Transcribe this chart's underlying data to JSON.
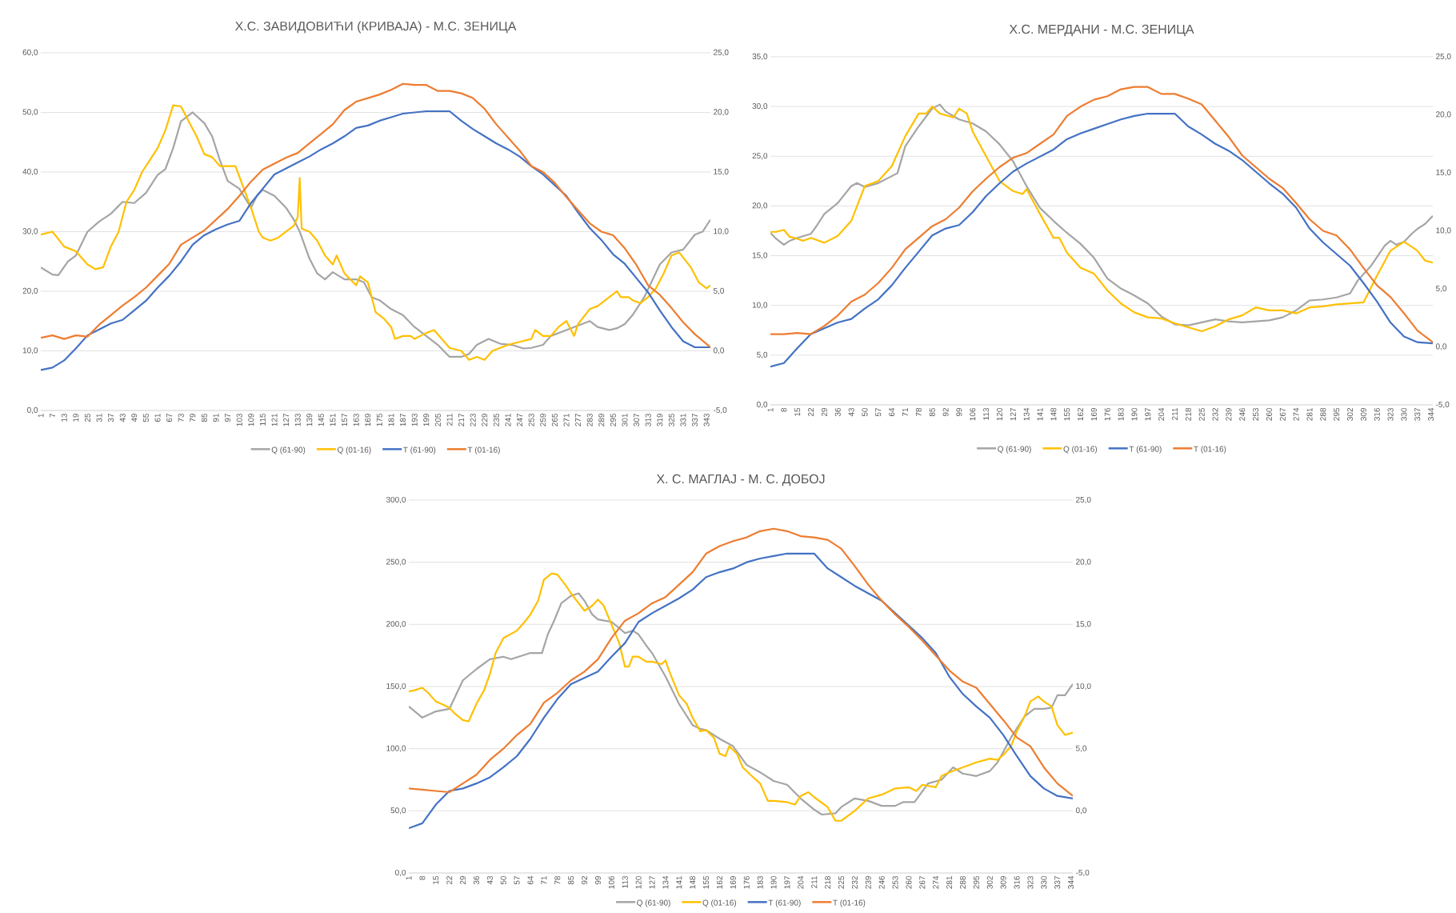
{
  "chart_data": [
    {
      "type": "line",
      "title": "Х.С. ЗАВИДОВИЋИ (КРИВАЈА) - М.С. ЗЕНИЦА",
      "grid": "y",
      "legend": "bottom",
      "xlim": [
        1,
        345
      ],
      "xticks": [
        1,
        7,
        13,
        19,
        25,
        31,
        37,
        43,
        49,
        55,
        61,
        67,
        73,
        79,
        85,
        91,
        97,
        103,
        109,
        115,
        121,
        127,
        133,
        139,
        145,
        151,
        157,
        163,
        169,
        175,
        181,
        187,
        193,
        199,
        205,
        211,
        217,
        223,
        229,
        235,
        241,
        247,
        253,
        259,
        265,
        271,
        277,
        283,
        289,
        295,
        301,
        307,
        313,
        319,
        325,
        331,
        337,
        343
      ],
      "ylim": [
        0,
        60
      ],
      "yticks": [
        {
          "value": 0,
          "label": "0,0"
        },
        {
          "value": 10,
          "label": "10,0"
        },
        {
          "value": 20,
          "label": "20,0"
        },
        {
          "value": 30,
          "label": "30,0"
        },
        {
          "value": 40,
          "label": "40,0"
        },
        {
          "value": 50,
          "label": "50,0"
        },
        {
          "value": 60,
          "label": "60,0"
        }
      ],
      "y2lim": [
        -5,
        25
      ],
      "y2ticks": [
        {
          "value": -5,
          "label": "-5,0"
        },
        {
          "value": 0,
          "label": "0,0"
        },
        {
          "value": 5,
          "label": "5,0"
        },
        {
          "value": 10,
          "label": "10,0"
        },
        {
          "value": 15,
          "label": "15,0"
        },
        {
          "value": 20,
          "label": "20,0"
        },
        {
          "value": 25,
          "label": "25,0"
        }
      ],
      "series": [
        {
          "name": "Q (61-90)",
          "color": "#a5a5a5",
          "axis": "y",
          "x": [
            1,
            7,
            10,
            15,
            19,
            25,
            31,
            37,
            43,
            49,
            55,
            61,
            65,
            69,
            73,
            79,
            85,
            89,
            93,
            97,
            103,
            109,
            112,
            115,
            121,
            127,
            131,
            134,
            139,
            143,
            147,
            151,
            157,
            163,
            167,
            171,
            175,
            181,
            187,
            193,
            199,
            205,
            211,
            217,
            221,
            225,
            231,
            237,
            243,
            249,
            253,
            259,
            263,
            271,
            279,
            283,
            287,
            293,
            297,
            301,
            305,
            311,
            319,
            325,
            331,
            337,
            341,
            345
          ],
          "values": [
            24,
            22.8,
            22.7,
            25,
            26,
            30,
            31.7,
            33,
            35,
            34.8,
            36.5,
            39.5,
            40.5,
            44,
            48.5,
            50,
            48.2,
            46,
            42,
            38.5,
            37.2,
            34,
            36,
            37,
            36,
            34,
            32,
            30,
            25.5,
            23,
            22,
            23.2,
            22,
            22,
            21.5,
            19,
            18.5,
            17,
            16,
            14,
            12.5,
            11,
            9,
            9,
            9.5,
            11,
            12,
            11.2,
            11,
            10.4,
            10.5,
            11,
            12.5,
            13.5,
            14.5,
            15,
            14,
            13.5,
            13.8,
            14.5,
            16,
            19,
            24.5,
            26.5,
            27,
            29.5,
            30,
            32
          ]
        },
        {
          "name": "Q (01-16)",
          "color": "#ffc000",
          "axis": "y",
          "x": [
            1,
            7,
            13,
            19,
            25,
            29,
            33,
            37,
            41,
            45,
            49,
            53,
            57,
            61,
            65,
            69,
            73,
            77,
            81,
            85,
            89,
            93,
            97,
            101,
            105,
            109,
            113,
            115,
            119,
            123,
            127,
            131,
            133,
            134,
            135,
            139,
            143,
            147,
            151,
            153,
            157,
            163,
            165,
            169,
            173,
            177,
            181,
            183,
            187,
            191,
            193,
            199,
            203,
            207,
            211,
            217,
            221,
            225,
            229,
            233,
            237,
            241,
            247,
            253,
            255,
            259,
            263,
            267,
            271,
            275,
            277,
            283,
            287,
            289,
            293,
            297,
            299,
            303,
            305,
            309,
            313,
            317,
            321,
            325,
            329,
            335,
            339,
            343,
            345
          ],
          "values": [
            29.5,
            30,
            27.5,
            26.7,
            24.5,
            23.7,
            24,
            27.5,
            30,
            35,
            37,
            40,
            42,
            44,
            47,
            51.2,
            51,
            48.5,
            46,
            43,
            42.5,
            41,
            41,
            41,
            37.5,
            34,
            30,
            29,
            28.5,
            29,
            30,
            31,
            32.5,
            39,
            30.5,
            30,
            28.5,
            26,
            24.5,
            26,
            23,
            21,
            22.5,
            21.5,
            16.5,
            15.5,
            14,
            12,
            12.5,
            12.5,
            12,
            13,
            13.5,
            12,
            10.5,
            10,
            8.5,
            9,
            8.5,
            10,
            10.5,
            11,
            11.5,
            12,
            13.5,
            12.5,
            12.5,
            14,
            15,
            12.5,
            14.5,
            17,
            17.5,
            18,
            19,
            20,
            19,
            19,
            18.5,
            18,
            19,
            20.5,
            23,
            26,
            26.5,
            24,
            21.5,
            20.5,
            21
          ]
        },
        {
          "name": "T (61-90)",
          "color": "#4472c4",
          "axis": "y2",
          "x": [
            1,
            7,
            13,
            19,
            25,
            31,
            37,
            43,
            49,
            55,
            61,
            67,
            73,
            79,
            85,
            91,
            97,
            103,
            109,
            115,
            121,
            127,
            133,
            139,
            145,
            151,
            157,
            163,
            169,
            175,
            181,
            187,
            193,
            199,
            205,
            211,
            217,
            223,
            229,
            235,
            241,
            247,
            253,
            259,
            265,
            271,
            277,
            283,
            289,
            295,
            301,
            307,
            313,
            319,
            325,
            331,
            337,
            345
          ],
          "values": [
            -1.6,
            -1.4,
            -0.8,
            0.2,
            1.3,
            1.8,
            2.3,
            2.6,
            3.4,
            4.2,
            5.3,
            6.3,
            7.5,
            8.9,
            9.7,
            10.2,
            10.6,
            10.9,
            12.4,
            13.6,
            14.8,
            15.3,
            15.8,
            16.3,
            16.9,
            17.4,
            18,
            18.7,
            18.9,
            19.3,
            19.6,
            19.9,
            20,
            20.1,
            20.1,
            20.1,
            19.3,
            18.6,
            18,
            17.4,
            16.9,
            16.3,
            15.5,
            14.8,
            13.9,
            13,
            11.6,
            10.3,
            9.3,
            8.1,
            7.3,
            6.1,
            4.9,
            3.4,
            2,
            0.8,
            0.3,
            0.3
          ]
        },
        {
          "name": "T (01-16)",
          "color": "#ed7d31",
          "axis": "y2",
          "x": [
            1,
            7,
            13,
            19,
            25,
            31,
            37,
            43,
            49,
            55,
            61,
            67,
            73,
            79,
            85,
            91,
            97,
            103,
            109,
            115,
            121,
            127,
            133,
            139,
            145,
            151,
            157,
            163,
            169,
            175,
            181,
            187,
            193,
            199,
            205,
            211,
            217,
            223,
            229,
            235,
            241,
            247,
            253,
            259,
            265,
            271,
            277,
            283,
            289,
            295,
            301,
            307,
            313,
            319,
            325,
            331,
            337,
            345
          ],
          "values": [
            1.1,
            1.3,
            1,
            1.3,
            1.2,
            2.2,
            3,
            3.8,
            4.5,
            5.3,
            6.3,
            7.3,
            8.9,
            9.5,
            10.1,
            11,
            11.9,
            13,
            14.2,
            15.2,
            15.7,
            16.2,
            16.6,
            17.4,
            18.2,
            19,
            20.2,
            20.9,
            21.2,
            21.5,
            21.9,
            22.4,
            22.3,
            22.3,
            21.8,
            21.8,
            21.6,
            21.2,
            20.3,
            19,
            17.9,
            16.8,
            15.5,
            15,
            14.1,
            12.9,
            11.8,
            10.7,
            10,
            9.7,
            8.6,
            7.2,
            5.5,
            4.7,
            3.6,
            2.4,
            1.4,
            0.3
          ]
        }
      ]
    },
    {
      "type": "line",
      "title": "Х.С. МЕРДАНИ - М.С. ЗЕНИЦА",
      "grid": "y",
      "legend": "bottom",
      "xlim": [
        1,
        345
      ],
      "xticks": [
        1,
        8,
        15,
        22,
        29,
        36,
        43,
        50,
        57,
        64,
        71,
        78,
        85,
        92,
        99,
        106,
        113,
        120,
        127,
        134,
        141,
        148,
        155,
        162,
        169,
        176,
        183,
        190,
        197,
        204,
        211,
        218,
        225,
        232,
        239,
        246,
        253,
        260,
        267,
        274,
        281,
        288,
        295,
        302,
        309,
        316,
        323,
        330,
        337,
        344
      ],
      "ylim": [
        0,
        35
      ],
      "yticks": [
        {
          "value": 0,
          "label": "0,0"
        },
        {
          "value": 5,
          "label": "5,0"
        },
        {
          "value": 10,
          "label": "10,0"
        },
        {
          "value": 15,
          "label": "15,0"
        },
        {
          "value": 20,
          "label": "20,0"
        },
        {
          "value": 25,
          "label": "25,0"
        },
        {
          "value": 30,
          "label": "30,0"
        },
        {
          "value": 35,
          "label": "35,0"
        }
      ],
      "y2lim": [
        -5,
        25
      ],
      "y2ticks": [
        {
          "value": -5,
          "label": "-5,0"
        },
        {
          "value": 0,
          "label": "0,0"
        },
        {
          "value": 5,
          "label": "5,0"
        },
        {
          "value": 10,
          "label": "10,0"
        },
        {
          "value": 15,
          "label": "15,0"
        },
        {
          "value": 20,
          "label": "20,0"
        },
        {
          "value": 25,
          "label": "25,0"
        }
      ],
      "series": [
        {
          "name": "Q (61-90)",
          "color": "#a5a5a5",
          "axis": "y",
          "x": [
            1,
            4,
            8,
            11,
            15,
            22,
            25,
            29,
            36,
            43,
            46,
            50,
            57,
            64,
            67,
            71,
            78,
            85,
            89,
            92,
            99,
            106,
            113,
            120,
            127,
            134,
            141,
            148,
            155,
            162,
            169,
            176,
            183,
            190,
            197,
            204,
            211,
            218,
            225,
            232,
            239,
            246,
            253,
            260,
            267,
            274,
            281,
            288,
            295,
            302,
            306,
            313,
            320,
            323,
            326,
            330,
            334,
            337,
            341,
            345
          ],
          "values": [
            17.3,
            16.7,
            16.1,
            16.5,
            16.8,
            17.2,
            18,
            19.2,
            20.3,
            22,
            22.3,
            21.9,
            22.3,
            23,
            23.3,
            26,
            28,
            29.8,
            30.2,
            29.5,
            28.7,
            28.3,
            27.5,
            26.2,
            24.5,
            22,
            19.8,
            18.5,
            17.3,
            16.2,
            14.8,
            12.7,
            11.7,
            11,
            10.2,
            8.9,
            8.1,
            8,
            8.3,
            8.6,
            8.4,
            8.3,
            8.4,
            8.5,
            8.8,
            9.5,
            10.5,
            10.6,
            10.8,
            11.2,
            12.5,
            14,
            16,
            16.5,
            16.1,
            16.4,
            17.2,
            17.7,
            18.2,
            19
          ]
        },
        {
          "name": "Q (01-16)",
          "color": "#ffc000",
          "axis": "y",
          "x": [
            1,
            4,
            8,
            11,
            15,
            18,
            22,
            29,
            36,
            43,
            50,
            57,
            64,
            71,
            78,
            82,
            85,
            89,
            96,
            99,
            103,
            106,
            113,
            120,
            127,
            132,
            134,
            141,
            148,
            151,
            155,
            162,
            169,
            176,
            183,
            190,
            197,
            204,
            211,
            218,
            225,
            232,
            239,
            246,
            253,
            260,
            267,
            274,
            281,
            288,
            295,
            302,
            309,
            316,
            323,
            330,
            334,
            337,
            341,
            345
          ],
          "values": [
            17.4,
            17.4,
            17.6,
            16.9,
            16.7,
            16.5,
            16.8,
            16.3,
            17,
            18.5,
            22,
            22.5,
            24,
            27,
            29.3,
            29.3,
            30,
            29.3,
            28.9,
            29.8,
            29.3,
            27.5,
            25,
            22.5,
            21.5,
            21.2,
            21.7,
            19.2,
            16.8,
            16.8,
            15.3,
            13.8,
            13.2,
            11.5,
            10.2,
            9.3,
            8.8,
            8.7,
            8.2,
            7.8,
            7.4,
            7.9,
            8.6,
            9,
            9.8,
            9.5,
            9.5,
            9.2,
            9.8,
            9.9,
            10.1,
            10.2,
            10.3,
            13,
            15.5,
            16.4,
            15.9,
            15.5,
            14.5,
            14.3
          ]
        },
        {
          "name": "T (61-90)",
          "color": "#4472c4",
          "axis": "y2",
          "x": [
            1,
            8,
            15,
            22,
            29,
            36,
            43,
            50,
            57,
            64,
            71,
            78,
            85,
            92,
            99,
            106,
            113,
            120,
            127,
            134,
            141,
            148,
            155,
            162,
            169,
            176,
            183,
            190,
            197,
            204,
            211,
            218,
            225,
            232,
            239,
            246,
            253,
            260,
            267,
            274,
            281,
            288,
            295,
            302,
            309,
            316,
            323,
            330,
            337,
            345
          ],
          "values": [
            -1.7,
            -1.4,
            -0.1,
            1.1,
            1.6,
            2.1,
            2.4,
            3.3,
            4.1,
            5.3,
            6.8,
            8.2,
            9.6,
            10.2,
            10.5,
            11.6,
            13,
            14.1,
            15.1,
            15.8,
            16.4,
            17,
            17.9,
            18.4,
            18.8,
            19.2,
            19.6,
            19.9,
            20.1,
            20.1,
            20.1,
            19,
            18.3,
            17.5,
            16.9,
            16.1,
            15.1,
            14.1,
            13.2,
            12,
            10.2,
            9,
            8,
            7,
            5.5,
            3.9,
            2.1,
            0.9,
            0.4,
            0.3
          ]
        },
        {
          "name": "T (01-16)",
          "color": "#ed7d31",
          "axis": "y2",
          "x": [
            1,
            8,
            15,
            22,
            29,
            36,
            43,
            50,
            57,
            64,
            71,
            78,
            85,
            92,
            99,
            106,
            113,
            120,
            127,
            134,
            141,
            148,
            155,
            162,
            169,
            176,
            183,
            190,
            197,
            204,
            211,
            218,
            225,
            232,
            239,
            246,
            253,
            260,
            267,
            274,
            281,
            288,
            295,
            302,
            309,
            316,
            323,
            330,
            337,
            345
          ],
          "values": [
            1.1,
            1.1,
            1.2,
            1.1,
            1.8,
            2.7,
            3.9,
            4.5,
            5.5,
            6.8,
            8.4,
            9.4,
            10.4,
            11,
            12,
            13.4,
            14.5,
            15.5,
            16.3,
            16.7,
            17.5,
            18.3,
            19.9,
            20.7,
            21.3,
            21.6,
            22.2,
            22.4,
            22.4,
            21.8,
            21.8,
            21.4,
            20.9,
            19.5,
            18.1,
            16.5,
            15.5,
            14.5,
            13.7,
            12.4,
            11,
            10,
            9.6,
            8.4,
            6.8,
            5.3,
            4.3,
            2.9,
            1.4,
            0.4
          ]
        }
      ]
    },
    {
      "type": "line",
      "title": "Х. С. МАГЛАЈ - М. С. ДОБОЈ",
      "grid": "y",
      "legend": "bottom",
      "xlim": [
        1,
        345
      ],
      "xticks": [
        1,
        8,
        15,
        22,
        29,
        36,
        43,
        50,
        57,
        64,
        71,
        78,
        85,
        92,
        99,
        106,
        113,
        120,
        127,
        134,
        141,
        148,
        155,
        162,
        169,
        176,
        183,
        190,
        197,
        204,
        211,
        218,
        225,
        232,
        239,
        246,
        253,
        260,
        267,
        274,
        281,
        288,
        295,
        302,
        309,
        316,
        323,
        330,
        337,
        344
      ],
      "ylim": [
        0,
        300
      ],
      "yticks": [
        {
          "value": 0,
          "label": "0,0"
        },
        {
          "value": 50,
          "label": "50,0"
        },
        {
          "value": 100,
          "label": "100,0"
        },
        {
          "value": 150,
          "label": "150,0"
        },
        {
          "value": 200,
          "label": "200,0"
        },
        {
          "value": 250,
          "label": "250,0"
        },
        {
          "value": 300,
          "label": "300,0"
        }
      ],
      "y2lim": [
        -5,
        25
      ],
      "y2ticks": [
        {
          "value": -5,
          "label": "-5,0"
        },
        {
          "value": 0,
          "label": "0,0"
        },
        {
          "value": 5,
          "label": "5,0"
        },
        {
          "value": 10,
          "label": "10,0"
        },
        {
          "value": 15,
          "label": "15,0"
        },
        {
          "value": 20,
          "label": "20,0"
        },
        {
          "value": 25,
          "label": "25,0"
        }
      ],
      "series": [
        {
          "name": "Q (61-90)",
          "color": "#a5a5a5",
          "axis": "y",
          "x": [
            1,
            8,
            15,
            22,
            29,
            36,
            43,
            50,
            54,
            64,
            70,
            73,
            76,
            80,
            85,
            89,
            92,
            96,
            99,
            106,
            110,
            113,
            117,
            120,
            124,
            127,
            134,
            141,
            148,
            152,
            155,
            162,
            169,
            176,
            183,
            190,
            197,
            204,
            211,
            215,
            222,
            225,
            232,
            239,
            246,
            253,
            257,
            263,
            270,
            277,
            283,
            288,
            295,
            302,
            306,
            313,
            320,
            325,
            330,
            334,
            337,
            341,
            345
          ],
          "values": [
            134,
            125,
            130,
            132,
            155,
            164,
            172,
            174,
            172,
            177,
            177,
            192,
            202,
            217,
            223,
            225,
            219,
            208,
            204,
            202,
            197,
            193,
            195,
            192,
            183,
            177,
            158,
            136,
            119,
            116,
            115,
            108,
            102,
            87,
            81,
            74,
            71,
            60,
            51,
            47,
            48,
            53,
            60,
            58,
            54,
            54,
            57,
            57,
            72,
            75,
            85,
            80,
            78,
            82,
            89,
            109,
            126,
            132,
            132,
            133,
            143,
            143,
            152
          ]
        },
        {
          "name": "Q (01-16)",
          "color": "#ffc000",
          "axis": "y",
          "x": [
            1,
            4,
            8,
            11,
            15,
            18,
            22,
            25,
            29,
            32,
            36,
            40,
            43,
            46,
            50,
            57,
            61,
            64,
            68,
            71,
            75,
            78,
            82,
            85,
            89,
            92,
            96,
            99,
            102,
            106,
            110,
            113,
            115,
            117,
            120,
            124,
            127,
            132,
            134,
            136,
            141,
            145,
            148,
            152,
            155,
            159,
            162,
            165,
            167,
            171,
            174,
            178,
            183,
            187,
            190,
            197,
            201,
            204,
            208,
            211,
            218,
            222,
            225,
            232,
            239,
            246,
            253,
            260,
            264,
            267,
            274,
            277,
            281,
            288,
            295,
            302,
            306,
            309,
            313,
            316,
            320,
            323,
            327,
            330,
            334,
            337,
            341,
            345
          ],
          "values": [
            146,
            147,
            149,
            145,
            138,
            136,
            133,
            128,
            123,
            122,
            136,
            147,
            160,
            177,
            189,
            195,
            202,
            208,
            219,
            236,
            241,
            240,
            232,
            225,
            217,
            211,
            215,
            220,
            215,
            200,
            185,
            166,
            166,
            174,
            174,
            170,
            170,
            168,
            171,
            162,
            143,
            136,
            125,
            114,
            115,
            109,
            96,
            94,
            102,
            96,
            85,
            79,
            72,
            58,
            58,
            57,
            55,
            62,
            65,
            61,
            53,
            42,
            42,
            50,
            60,
            63,
            68,
            69,
            66,
            71,
            69,
            78,
            81,
            85,
            89,
            92,
            91,
            95,
            102,
            114,
            126,
            138,
            142,
            138,
            134,
            119,
            111,
            113
          ]
        },
        {
          "name": "T (61-90)",
          "color": "#4472c4",
          "axis": "y2",
          "x": [
            1,
            8,
            15,
            22,
            29,
            36,
            43,
            50,
            57,
            64,
            71,
            78,
            85,
            92,
            99,
            106,
            113,
            120,
            127,
            134,
            141,
            148,
            155,
            162,
            169,
            176,
            183,
            190,
            197,
            204,
            211,
            218,
            225,
            232,
            239,
            246,
            253,
            260,
            267,
            274,
            281,
            288,
            295,
            302,
            309,
            316,
            323,
            330,
            337,
            345
          ],
          "values": [
            -1.4,
            -1,
            0.5,
            1.6,
            1.8,
            2.2,
            2.7,
            3.5,
            4.4,
            5.8,
            7.5,
            9,
            10.2,
            10.7,
            11.2,
            12.4,
            13.5,
            15.2,
            15.9,
            16.5,
            17.1,
            17.8,
            18.8,
            19.2,
            19.5,
            20,
            20.3,
            20.5,
            20.7,
            20.7,
            20.7,
            19.5,
            18.8,
            18.1,
            17.5,
            16.9,
            15.9,
            14.9,
            13.9,
            12.7,
            10.8,
            9.4,
            8.4,
            7.5,
            6.1,
            4.4,
            2.8,
            1.8,
            1.2,
            1
          ]
        },
        {
          "name": "T (01-16)",
          "color": "#ed7d31",
          "axis": "y2",
          "x": [
            1,
            8,
            15,
            22,
            29,
            36,
            43,
            50,
            57,
            64,
            71,
            78,
            85,
            92,
            99,
            106,
            113,
            120,
            127,
            134,
            141,
            148,
            155,
            162,
            169,
            176,
            183,
            190,
            197,
            204,
            211,
            218,
            225,
            232,
            239,
            246,
            253,
            260,
            267,
            274,
            281,
            288,
            295,
            302,
            309,
            316,
            323,
            330,
            337,
            345
          ],
          "values": [
            1.8,
            1.7,
            1.6,
            1.5,
            2.2,
            2.9,
            4.1,
            5,
            6.1,
            7,
            8.7,
            9.5,
            10.5,
            11.2,
            12.2,
            13.9,
            15.3,
            15.9,
            16.7,
            17.2,
            18.2,
            19.2,
            20.7,
            21.3,
            21.7,
            22,
            22.5,
            22.7,
            22.5,
            22.1,
            22,
            21.8,
            21.1,
            19.7,
            18.2,
            16.9,
            15.8,
            14.8,
            13.7,
            12.5,
            11.3,
            10.4,
            9.9,
            8.6,
            7.3,
            5.9,
            5.2,
            3.5,
            2.2,
            1.2
          ]
        }
      ]
    }
  ]
}
